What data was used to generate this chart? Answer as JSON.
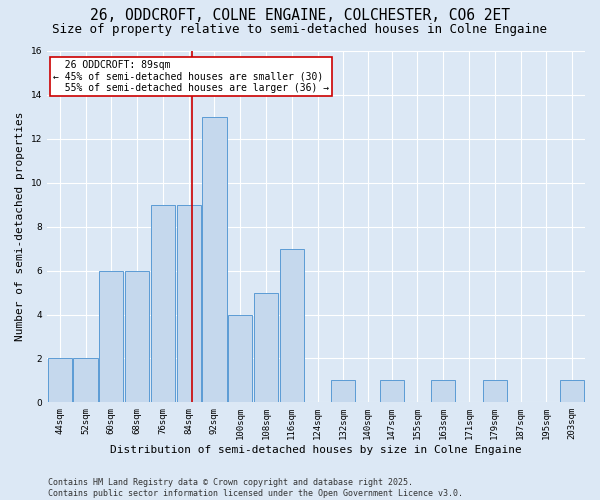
{
  "title": "26, ODDCROFT, COLNE ENGAINE, COLCHESTER, CO6 2ET",
  "subtitle": "Size of property relative to semi-detached houses in Colne Engaine",
  "xlabel": "Distribution of semi-detached houses by size in Colne Engaine",
  "ylabel": "Number of semi-detached properties",
  "bins": [
    44,
    52,
    60,
    68,
    76,
    84,
    92,
    100,
    108,
    116,
    124,
    132,
    140,
    147,
    155,
    163,
    171,
    179,
    187,
    195,
    203
  ],
  "values": [
    2,
    2,
    6,
    6,
    9,
    9,
    13,
    4,
    5,
    7,
    0,
    1,
    0,
    1,
    0,
    1,
    0,
    1,
    0,
    0,
    1
  ],
  "bar_color": "#c5d8ed",
  "bar_edge_color": "#5b9bd5",
  "property_size": 89,
  "property_label": "26 ODDCROFT: 89sqm",
  "smaller_pct": 45,
  "smaller_n": 30,
  "larger_pct": 55,
  "larger_n": 36,
  "vline_color": "#cc0000",
  "annotation_box_color": "#cc0000",
  "background_color": "#dce8f5",
  "plot_bg_color": "#dce8f5",
  "ylim": [
    0,
    16
  ],
  "yticks": [
    0,
    2,
    4,
    6,
    8,
    10,
    12,
    14,
    16
  ],
  "footer": "Contains HM Land Registry data © Crown copyright and database right 2025.\nContains public sector information licensed under the Open Government Licence v3.0.",
  "title_fontsize": 10.5,
  "subtitle_fontsize": 9,
  "axis_label_fontsize": 8,
  "tick_fontsize": 6.5,
  "footer_fontsize": 6,
  "annotation_fontsize": 7
}
